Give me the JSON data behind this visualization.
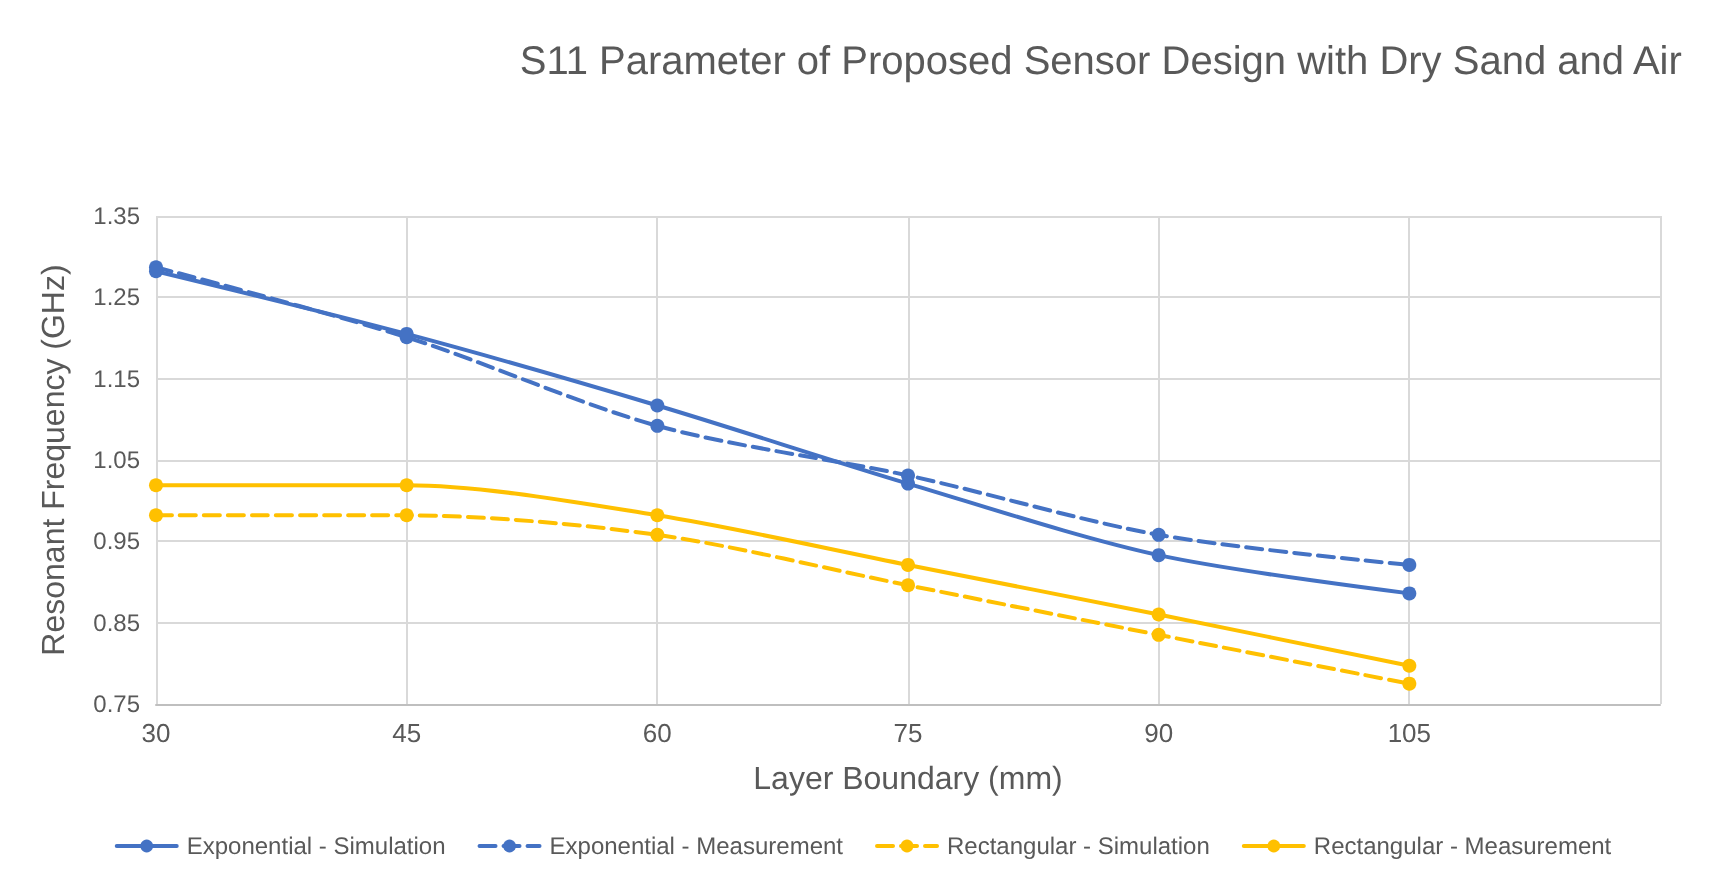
{
  "chart_data": {
    "type": "line",
    "title": "S11 Parameter of Proposed Sensor Design with Dry Sand and Air",
    "xlabel": "Layer Boundary (mm)",
    "ylabel": "Resonant Frequency (GHz)",
    "x": [
      30,
      45,
      60,
      75,
      90,
      105
    ],
    "series": [
      {
        "name": "Exponential - Simulation",
        "color": "#4472c4",
        "line_style": "solid",
        "values": [
          1.282,
          1.205,
          1.117,
          1.021,
          0.933,
          0.886
        ]
      },
      {
        "name": "Exponential - Measurement",
        "color": "#4472c4",
        "line_style": "dashed",
        "values": [
          1.287,
          1.201,
          1.092,
          1.031,
          0.958,
          0.921
        ]
      },
      {
        "name": "Rectangular - Simulation",
        "color": "#ffc000",
        "line_style": "dashed",
        "values": [
          0.982,
          0.982,
          0.958,
          0.896,
          0.835,
          0.775
        ]
      },
      {
        "name": "Rectangular - Measurement",
        "color": "#ffc000",
        "line_style": "solid",
        "values": [
          1.019,
          1.019,
          0.982,
          0.921,
          0.86,
          0.797
        ]
      }
    ],
    "xlim": [
      30,
      120
    ],
    "xticks": [
      30,
      45,
      60,
      75,
      90,
      105,
      {
        "value": 120,
        "label": null
      }
    ],
    "ylim": [
      0.75,
      1.35
    ],
    "yticks": [
      0.75,
      0.85,
      0.95,
      1.05,
      1.15,
      1.25,
      1.35
    ],
    "grid": true,
    "legend": "bottom",
    "marker": "circle"
  }
}
